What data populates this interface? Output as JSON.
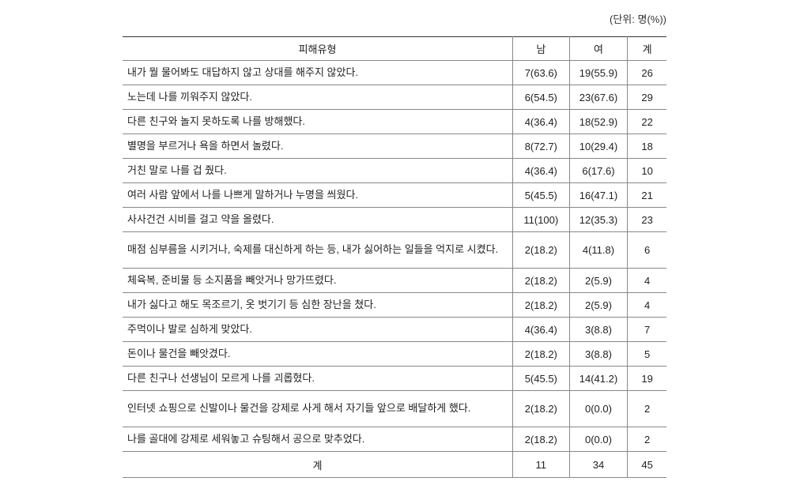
{
  "unit_label": "(단위: 명(%))",
  "headers": {
    "type": "피해유형",
    "male": "남",
    "female": "여",
    "total": "계"
  },
  "rows": [
    {
      "desc": "내가 뭘 물어봐도 대답하지 않고 상대를 해주지 않았다.",
      "male": "7(63.6)",
      "female": "19(55.9)",
      "total": "26",
      "multi": false
    },
    {
      "desc": "노는데 나를 끼워주지 않았다.",
      "male": "6(54.5)",
      "female": "23(67.6)",
      "total": "29",
      "multi": false
    },
    {
      "desc": "다른 친구와 놀지 못하도록 나를 방해했다.",
      "male": "4(36.4)",
      "female": "18(52.9)",
      "total": "22",
      "multi": false
    },
    {
      "desc": "별명을 부르거나 욕을 하면서 놀렸다.",
      "male": "8(72.7)",
      "female": "10(29.4)",
      "total": "18",
      "multi": false
    },
    {
      "desc": "거친 말로 나를 겁 줬다.",
      "male": "4(36.4)",
      "female": "6(17.6)",
      "total": "10",
      "multi": false
    },
    {
      "desc": "여러 사람 앞에서 나를 나쁘게 말하거나 누명을 씌웠다.",
      "male": "5(45.5)",
      "female": "16(47.1)",
      "total": "21",
      "multi": false
    },
    {
      "desc": "사사건건 시비를 걸고 약을 올렸다.",
      "male": "11(100)",
      "female": "12(35.3)",
      "total": "23",
      "multi": false
    },
    {
      "desc": "매점 심부름을 시키거나, 숙제를 대신하게 하는 등, 내가 싫어하는 일들을 억지로 시켰다.",
      "male": "2(18.2)",
      "female": "4(11.8)",
      "total": "6",
      "multi": true
    },
    {
      "desc": "체육복, 준비물 등 소지품을 빼앗거나 망가뜨렸다.",
      "male": "2(18.2)",
      "female": "2(5.9)",
      "total": "4",
      "multi": false
    },
    {
      "desc": "내가 싫다고 해도 목조르기, 옷 벗기기 등 심한 장난을 쳤다.",
      "male": "2(18.2)",
      "female": "2(5.9)",
      "total": "4",
      "multi": false
    },
    {
      "desc": "주먹이나 발로 심하게 맞았다.",
      "male": "4(36.4)",
      "female": "3(8.8)",
      "total": "7",
      "multi": false
    },
    {
      "desc": "돈이나 물건을 빼앗겼다.",
      "male": "2(18.2)",
      "female": "3(8.8)",
      "total": "5",
      "multi": false
    },
    {
      "desc": "다른 친구나 선생님이 모르게 나를 괴롭혔다.",
      "male": "5(45.5)",
      "female": "14(41.2)",
      "total": "19",
      "multi": false
    },
    {
      "desc": "인터넷 쇼핑으로 신발이나 물건을 강제로 사게 해서 자기들 앞으로 배달하게 했다.",
      "male": "2(18.2)",
      "female": "0(0.0)",
      "total": "2",
      "multi": true
    },
    {
      "desc": "나를 골대에 강제로 세워놓고 슈팅해서 공으로 맞추었다.",
      "male": "2(18.2)",
      "female": "0(0.0)",
      "total": "2",
      "multi": false
    }
  ],
  "totals": {
    "label": "계",
    "male": "11",
    "female": "34",
    "total": "45"
  }
}
